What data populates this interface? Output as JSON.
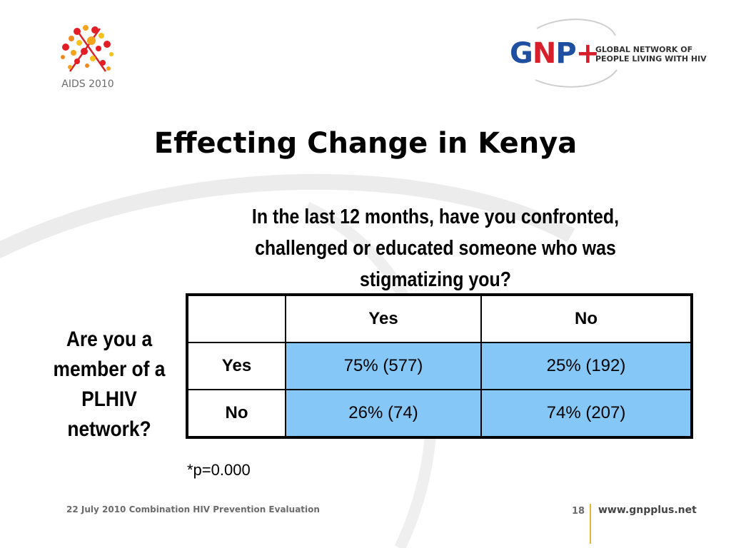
{
  "logos": {
    "aids": {
      "text": "AIDS 2010"
    },
    "gnp": {
      "letters": {
        "g": "G",
        "n": "N",
        "p": "P",
        "plus": "+"
      },
      "tagline_line1": "GLOBAL NETWORK OF",
      "tagline_line2": "PEOPLE LIVING WITH HIV"
    }
  },
  "slide": {
    "title": "Effecting Change in Kenya",
    "question": "In the last 12 months, have you confronted, challenged or educated someone who was stigmatizing you?",
    "row_question": "Are you a member of a PLHIV network?",
    "p_note": "*p=0.000"
  },
  "table": {
    "columns": [
      "",
      "Yes",
      "No"
    ],
    "rows": [
      {
        "label": "Yes",
        "cells": [
          "75% (577)",
          "25% (192)"
        ]
      },
      {
        "label": "No",
        "cells": [
          "26% (74)",
          "74% (207)"
        ]
      }
    ],
    "cell_color": "#85c7f7"
  },
  "footer": {
    "text": "22 July 2010 Combination HIV Prevention Evaluation",
    "page_number": "18",
    "url": "www.gnpplus.net"
  }
}
